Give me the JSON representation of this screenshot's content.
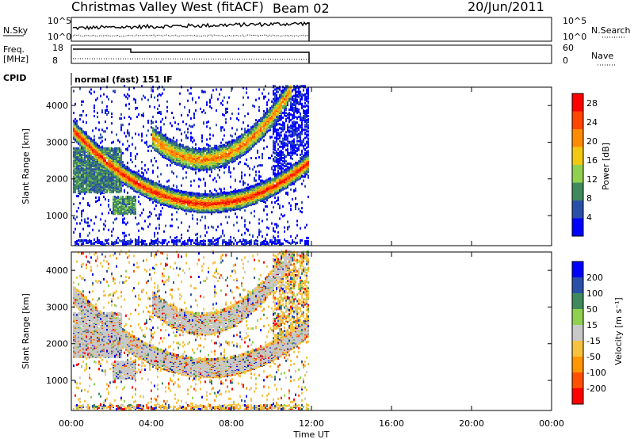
{
  "header": {
    "station": "Christmas Valley West (fitACF)",
    "beam": "Beam 02",
    "date": "20/Jun/2011"
  },
  "panels": {
    "nsky_label": "N.Sky",
    "nsearch_label": "N.Search",
    "freq_label_1": "Freq.",
    "freq_label_2": "[MHz]",
    "nave_label": "Nave",
    "cpid_label": "CPID",
    "cpid_value": "normal (fast) 151 IF",
    "noise_ticks_left": [
      "10^5",
      "10^0"
    ],
    "noise_ticks_right": [
      "10^5",
      "10^0"
    ],
    "freq_ticks": [
      "18",
      "8"
    ],
    "nave_ticks": [
      "60",
      "0"
    ]
  },
  "colors": {
    "power_scale": [
      "#0000ff",
      "#2a4fa8",
      "#3f8a5c",
      "#8fd14f",
      "#f2c811",
      "#ff8c00",
      "#ff4500",
      "#ff0000"
    ],
    "velocity_scale": [
      "#ff0000",
      "#ff5000",
      "#ff9600",
      "#f7c23e",
      "#c8c8c8",
      "#8fd14f",
      "#3f8a5c",
      "#2a4fa8",
      "#0000ff"
    ]
  },
  "chart_data": [
    {
      "type": "heatmap",
      "title": "Power",
      "xlabel": "Time UT",
      "ylabel": "Slant Range [km]",
      "xlim": [
        "00:00",
        "24:00"
      ],
      "ylim": [
        180,
        4500
      ],
      "x_ticks": [
        "00:00",
        "04:00",
        "08:00",
        "12:00",
        "16:00",
        "20:00",
        "00:00"
      ],
      "y_ticks": [
        "1000",
        "2000",
        "3000",
        "4000"
      ],
      "data_extent": [
        "00:00",
        "12:00"
      ],
      "colorbar": {
        "label": "Power [dB]",
        "ticks": [
          "4",
          "8",
          "12",
          "16",
          "20",
          "24",
          "28"
        ],
        "range": [
          0,
          30
        ]
      }
    },
    {
      "type": "heatmap",
      "title": "Velocity",
      "xlabel": "Time UT",
      "ylabel": "Slant Range [km]",
      "xlim": [
        "00:00",
        "24:00"
      ],
      "ylim": [
        180,
        4500
      ],
      "x_ticks": [
        "00:00",
        "04:00",
        "08:00",
        "12:00",
        "16:00",
        "20:00",
        "00:00"
      ],
      "y_ticks": [
        "1000",
        "2000",
        "3000",
        "4000"
      ],
      "data_extent": [
        "00:00",
        "12:00"
      ],
      "colorbar": {
        "label": "Velocity [m s⁻¹]",
        "ticks": [
          "200",
          "100",
          "50",
          "15",
          "-15",
          "-50",
          "-100",
          "-200"
        ],
        "range": [
          -250,
          250
        ]
      }
    }
  ]
}
